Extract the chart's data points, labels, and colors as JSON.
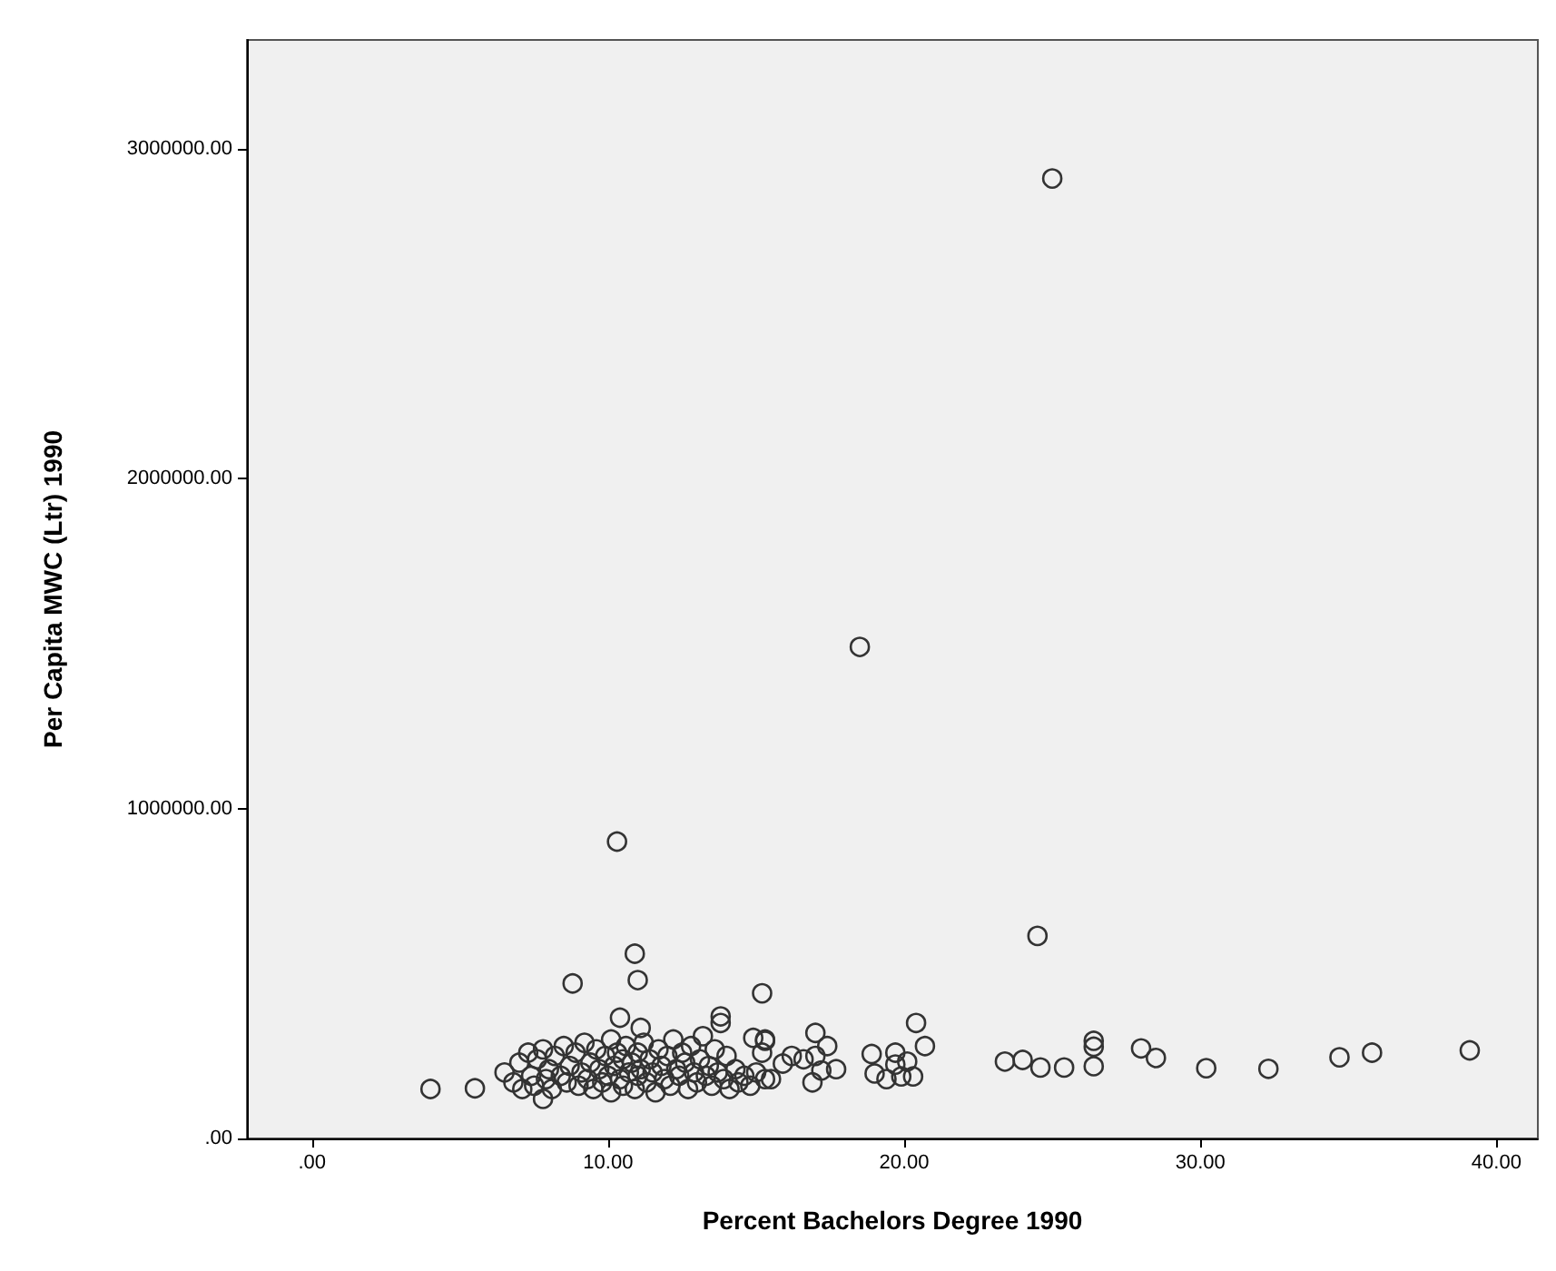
{
  "chart_data": {
    "type": "scatter",
    "xlabel": "Percent Bachelors Degree 1990",
    "ylabel": "Per Capita MWC (Ltr) 1990",
    "xlim": [
      -2.2,
      41.4
    ],
    "ylim": [
      0,
      3330000
    ],
    "xticks": [
      {
        "value": 0,
        "label": ".00"
      },
      {
        "value": 10,
        "label": "10.00"
      },
      {
        "value": 20,
        "label": "20.00"
      },
      {
        "value": 30,
        "label": "30.00"
      },
      {
        "value": 40,
        "label": "40.00"
      }
    ],
    "yticks": [
      {
        "value": 0,
        "label": ".00"
      },
      {
        "value": 1000000,
        "label": "1000000.00"
      },
      {
        "value": 2000000,
        "label": "2000000.00"
      },
      {
        "value": 3000000,
        "label": "3000000.00"
      }
    ],
    "grid": false,
    "marker": "circle",
    "series": [
      {
        "color": "#333333",
        "x": [
          25.0,
          18.5,
          10.3,
          10.9,
          8.8,
          11.0,
          15.2,
          10.4,
          13.8,
          13.8,
          4.0,
          5.5,
          7.8,
          11.1,
          14.9,
          15.3,
          15.2,
          16.2,
          15.3,
          15.3,
          15.5,
          15.9,
          16.6,
          17.0,
          17.0,
          17.4,
          17.2,
          16.9,
          17.7,
          18.9,
          19.0,
          19.4,
          19.7,
          19.7,
          19.9,
          20.3,
          20.4,
          20.7,
          20.1,
          23.4,
          24.0,
          24.6,
          25.4,
          24.5,
          26.4,
          26.4,
          26.4,
          28.0,
          28.5,
          30.2,
          32.3,
          34.7,
          35.8,
          39.1,
          6.5,
          6.8,
          7.0,
          7.1,
          7.3,
          7.4,
          7.5,
          7.6,
          7.8,
          7.9,
          8.0,
          8.1,
          8.2,
          8.4,
          8.5,
          8.6,
          8.7,
          8.9,
          9.0,
          9.1,
          9.2,
          9.3,
          9.4,
          9.5,
          9.6,
          9.7,
          9.8,
          9.9,
          10.0,
          10.1,
          10.1,
          10.2,
          10.3,
          10.4,
          10.5,
          10.5,
          10.6,
          10.7,
          10.8,
          10.9,
          11.0,
          11.0,
          11.1,
          11.2,
          11.3,
          11.4,
          11.5,
          11.6,
          11.7,
          11.8,
          11.9,
          12.0,
          12.1,
          12.2,
          12.3,
          12.4,
          12.5,
          12.6,
          12.7,
          12.8,
          12.9,
          13.0,
          13.1,
          13.2,
          13.3,
          13.4,
          13.5,
          13.6,
          13.7,
          13.9,
          14.0,
          14.1,
          14.3,
          14.4,
          14.6,
          14.8,
          15.0
        ],
        "values": [
          2910000,
          1490000,
          900000,
          560000,
          470000,
          480000,
          440000,
          366000,
          370000,
          350000,
          150000,
          152000,
          120000,
          335000,
          305000,
          300000,
          260000,
          250000,
          296000,
          180000,
          180000,
          227000,
          240000,
          320000,
          250000,
          280000,
          206000,
          170000,
          210000,
          256000,
          197000,
          180000,
          260000,
          224000,
          188000,
          188000,
          350000,
          280000,
          233000,
          233000,
          238000,
          215000,
          215000,
          614000,
          296000,
          278000,
          219000,
          273000,
          244000,
          213000,
          211000,
          246000,
          260000,
          267000,
          200000,
          170000,
          230000,
          150000,
          260000,
          190000,
          160000,
          240000,
          270000,
          180000,
          210000,
          150000,
          250000,
          190000,
          280000,
          170000,
          220000,
          260000,
          160000,
          200000,
          290000,
          180000,
          230000,
          150000,
          270000,
          210000,
          170000,
          250000,
          190000,
          300000,
          140000,
          220000,
          260000,
          180000,
          240000,
          160000,
          280000,
          200000,
          230000,
          150000,
          260000,
          190000,
          210000,
          290000,
          170000,
          240000,
          200000,
          140000,
          270000,
          220000,
          180000,
          250000,
          160000,
          300000,
          210000,
          190000,
          260000,
          230000,
          150000,
          280000,
          200000,
          170000,
          240000,
          310000,
          190000,
          220000,
          160000,
          270000,
          200000,
          180000,
          250000,
          150000,
          210000,
          170000,
          190000,
          160000,
          200000
        ]
      }
    ]
  }
}
